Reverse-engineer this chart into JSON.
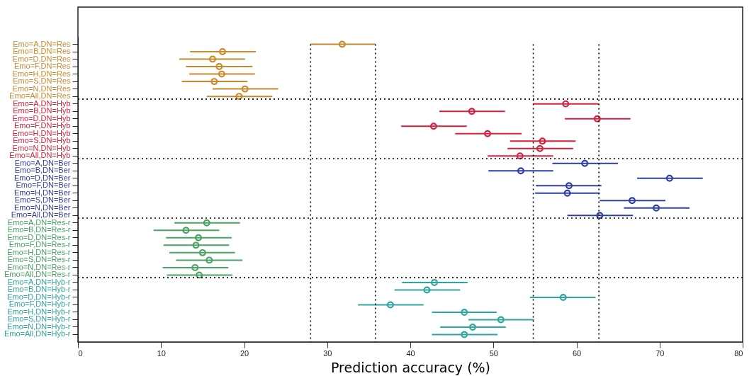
{
  "chart_data": {
    "type": "scatter",
    "orientation": "horizontal",
    "xlabel": "Prediction accuracy (%)",
    "categories": [
      "Emo=A,DN=Res",
      "Emo=B,DN=Res",
      "Emo=D,DN=Res",
      "Emo=F,DN=Res",
      "Emo=H,DN=Res",
      "Emo=S,DN=Res",
      "Emo=N,DN=Res",
      "Emo=All,DN=Res",
      "Emo=A,DN=Hyb",
      "Emo=B,DN=Hyb",
      "Emo=D,DN=Hyb",
      "Emo=F,DN=Hyb",
      "Emo=H,DN=Hyb",
      "Emo=S,DN=Hyb",
      "Emo=N,DN=Hyb",
      "Emo=All,DN=Hyb",
      "Emo=A,DN=Ber",
      "Emo=B,DN=Ber",
      "Emo=D,DN=Ber",
      "Emo=F,DN=Ber",
      "Emo=H,DN=Ber",
      "Emo=S,DN=Ber",
      "Emo=N,DN=Ber",
      "Emo=All,DN=Ber",
      "Emo=A,DN=Res-r",
      "Emo=B,DN=Res-r",
      "Emo=D,DN=Res-r",
      "Emo=F,DN=Res-r",
      "Emo=H,DN=Res-r",
      "Emo=S,DN=Res-r",
      "Emo=N,DN=Res-r",
      "Emo=All,DN=Res-r",
      "Emo=A,DN=Hyb-r",
      "Emo=B,DN=Hyb-r",
      "Emo=D,DN=Hyb-r",
      "Emo=F,DN=Hyb-r",
      "Emo=H,DN=Hyb-r",
      "Emo=S,DN=Hyb-r",
      "Emo=N,DN=Hyb-r",
      "Emo=All,DN=Hyb-r"
    ],
    "values": [
      31.8,
      17.4,
      16.2,
      17.0,
      17.3,
      16.4,
      20.1,
      19.4,
      58.7,
      47.4,
      62.5,
      42.8,
      49.3,
      55.9,
      55.6,
      53.2,
      61.0,
      53.3,
      71.2,
      59.1,
      58.9,
      66.7,
      69.6,
      62.8,
      15.5,
      13.0,
      14.5,
      14.2,
      15.0,
      15.8,
      14.1,
      14.6,
      42.9,
      42.0,
      58.4,
      37.6,
      46.5,
      50.9,
      47.5,
      46.5
    ],
    "errors": [
      [
        28.0,
        35.8
      ],
      [
        13.5,
        21.4
      ],
      [
        12.2,
        20.1
      ],
      [
        13.0,
        21.0
      ],
      [
        13.4,
        21.3
      ],
      [
        12.5,
        20.4
      ],
      [
        16.2,
        24.1
      ],
      [
        15.5,
        23.4
      ],
      [
        54.8,
        62.7
      ],
      [
        43.5,
        51.4
      ],
      [
        58.6,
        66.5
      ],
      [
        38.9,
        46.8
      ],
      [
        45.4,
        53.4
      ],
      [
        52.0,
        59.9
      ],
      [
        51.7,
        59.6
      ],
      [
        49.3,
        57.2
      ],
      [
        57.1,
        65.0
      ],
      [
        49.4,
        57.2
      ],
      [
        67.3,
        75.2
      ],
      [
        55.1,
        63.0
      ],
      [
        55.0,
        62.8
      ],
      [
        62.8,
        70.7
      ],
      [
        65.7,
        73.6
      ],
      [
        58.9,
        66.8
      ],
      [
        11.6,
        19.5
      ],
      [
        9.1,
        17.0
      ],
      [
        10.6,
        18.5
      ],
      [
        10.3,
        18.2
      ],
      [
        11.0,
        18.9
      ],
      [
        11.8,
        19.8
      ],
      [
        10.2,
        18.1
      ],
      [
        10.7,
        18.6
      ],
      [
        39.0,
        46.9
      ],
      [
        38.1,
        46.0
      ],
      [
        54.4,
        62.3
      ],
      [
        33.7,
        41.6
      ],
      [
        42.6,
        50.4
      ],
      [
        47.0,
        54.9
      ],
      [
        43.6,
        51.5
      ],
      [
        42.6,
        50.5
      ]
    ],
    "colors": [
      "#c98a2e",
      "#c98a2e",
      "#c98a2e",
      "#c98a2e",
      "#c98a2e",
      "#c98a2e",
      "#c98a2e",
      "#c98a2e",
      "#d4213d",
      "#d4213d",
      "#d4213d",
      "#d4213d",
      "#d4213d",
      "#d4213d",
      "#d4213d",
      "#d4213d",
      "#2e3f9e",
      "#2e3f9e",
      "#2e3f9e",
      "#2e3f9e",
      "#2e3f9e",
      "#2e3f9e",
      "#2e3f9e",
      "#2e3f9e",
      "#4aa264",
      "#4aa264",
      "#4aa264",
      "#4aa264",
      "#4aa264",
      "#4aa264",
      "#4aa264",
      "#4aa264",
      "#2fa59f",
      "#2fa59f",
      "#2fa59f",
      "#2fa59f",
      "#2fa59f",
      "#2fa59f",
      "#2fa59f",
      "#2fa59f"
    ],
    "xlim": [
      0,
      80
    ],
    "xticks": [
      0,
      10,
      20,
      30,
      40,
      50,
      60,
      70,
      80
    ],
    "ref_lines": [
      {
        "axis": "x",
        "value": 28.0,
        "line_style": "dotted"
      },
      {
        "axis": "x",
        "value": 35.8,
        "line_style": "dotted"
      },
      {
        "axis": "x",
        "value": 54.8,
        "line_style": "dotted"
      },
      {
        "axis": "x",
        "value": 62.7,
        "line_style": "dotted"
      },
      {
        "axis": "y",
        "value": "Emo=All,DN=Res",
        "line_style": "dotted"
      },
      {
        "axis": "y",
        "value": "Emo=All,DN=Hyb",
        "line_style": "dotted"
      },
      {
        "axis": "y",
        "value": "Emo=All,DN=Ber",
        "line_style": "dotted"
      },
      {
        "axis": "y",
        "value": "Emo=All,DN=Res-r",
        "line_style": "dotted"
      }
    ],
    "marker": "circle",
    "grid": false
  }
}
